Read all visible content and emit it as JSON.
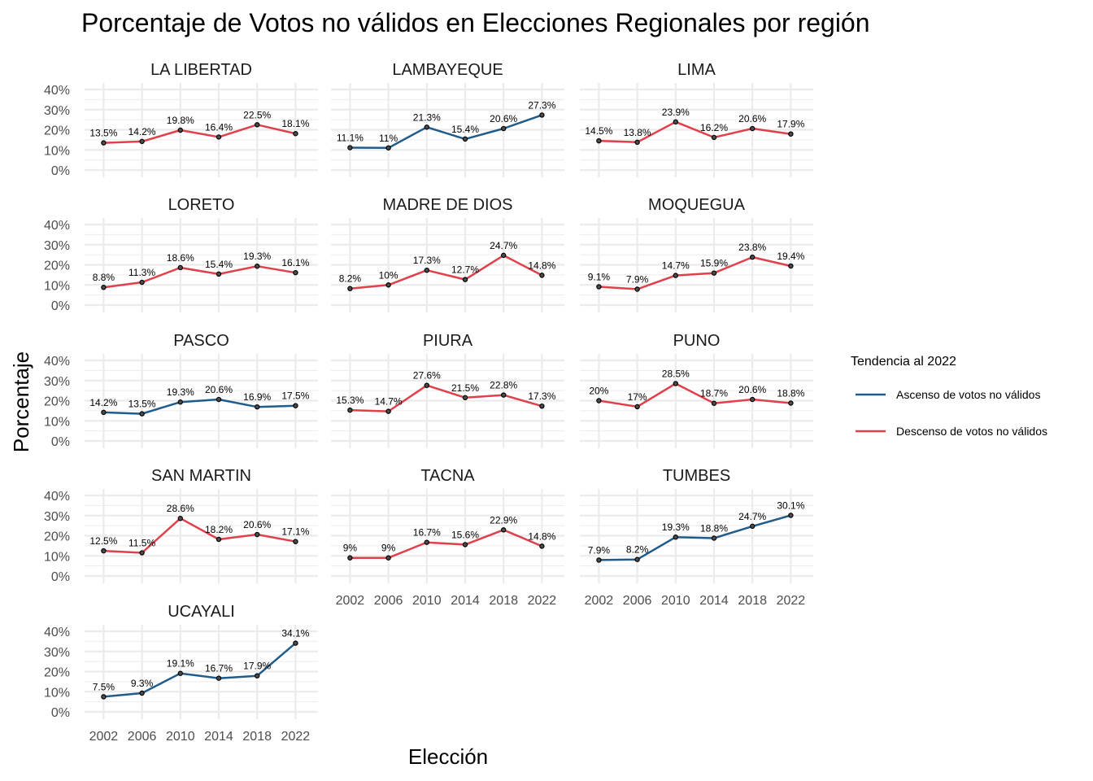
{
  "chart_data": {
    "type": "line",
    "title": "Porcentaje de Votos no válidos en Elecciones Regionales por región",
    "xlabel": "Elección",
    "ylabel": "Porcentaje",
    "x": [
      "2002",
      "2006",
      "2010",
      "2014",
      "2018",
      "2022"
    ],
    "ylim": [
      0,
      40
    ],
    "yticks": [
      "0%",
      "10%",
      "20%",
      "30%",
      "40%"
    ],
    "grid": true,
    "legend": {
      "title": "Tendencia al 2022",
      "position": "right",
      "entries": [
        {
          "key": "ascenso",
          "label": "Ascenso de votos no válidos",
          "color": "#1f5c8c"
        },
        {
          "key": "descenso",
          "label": "Descenso de votos no válidos",
          "color": "#e0404b"
        }
      ]
    },
    "panels": [
      {
        "region": "LA LIBERTAD",
        "trend": "descenso",
        "values": [
          13.5,
          14.2,
          19.8,
          16.4,
          22.5,
          18.1
        ],
        "labels": [
          "13.5%",
          "14.2%",
          "19.8%",
          "16.4%",
          "22.5%",
          "18.1%"
        ]
      },
      {
        "region": "LAMBAYEQUE",
        "trend": "ascenso",
        "values": [
          11.1,
          11,
          21.3,
          15.4,
          20.6,
          27.3
        ],
        "labels": [
          "11.1%",
          "11%",
          "21.3%",
          "15.4%",
          "20.6%",
          "27.3%"
        ]
      },
      {
        "region": "LIMA",
        "trend": "descenso",
        "values": [
          14.5,
          13.8,
          23.9,
          16.2,
          20.6,
          17.9
        ],
        "labels": [
          "14.5%",
          "13.8%",
          "23.9%",
          "16.2%",
          "20.6%",
          "17.9%"
        ]
      },
      {
        "region": "LORETO",
        "trend": "descenso",
        "values": [
          8.8,
          11.3,
          18.6,
          15.4,
          19.3,
          16.1
        ],
        "labels": [
          "8.8%",
          "11.3%",
          "18.6%",
          "15.4%",
          "19.3%",
          "16.1%"
        ]
      },
      {
        "region": "MADRE DE DIOS",
        "trend": "descenso",
        "values": [
          8.2,
          10,
          17.3,
          12.7,
          24.7,
          14.8
        ],
        "labels": [
          "8.2%",
          "10%",
          "17.3%",
          "12.7%",
          "24.7%",
          "14.8%"
        ]
      },
      {
        "region": "MOQUEGUA",
        "trend": "descenso",
        "values": [
          9.1,
          7.9,
          14.7,
          15.9,
          23.8,
          19.4
        ],
        "labels": [
          "9.1%",
          "7.9%",
          "14.7%",
          "15.9%",
          "23.8%",
          "19.4%"
        ]
      },
      {
        "region": "PASCO",
        "trend": "ascenso",
        "values": [
          14.2,
          13.5,
          19.3,
          20.6,
          16.9,
          17.5
        ],
        "labels": [
          "14.2%",
          "13.5%",
          "19.3%",
          "20.6%",
          "16.9%",
          "17.5%"
        ]
      },
      {
        "region": "PIURA",
        "trend": "descenso",
        "values": [
          15.3,
          14.7,
          27.6,
          21.5,
          22.8,
          17.3
        ],
        "labels": [
          "15.3%",
          "14.7%",
          "27.6%",
          "21.5%",
          "22.8%",
          "17.3%"
        ]
      },
      {
        "region": "PUNO",
        "trend": "descenso",
        "values": [
          20,
          17,
          28.5,
          18.7,
          20.6,
          18.8
        ],
        "labels": [
          "20%",
          "17%",
          "28.5%",
          "18.7%",
          "20.6%",
          "18.8%"
        ]
      },
      {
        "region": "SAN MARTIN",
        "trend": "descenso",
        "values": [
          12.5,
          11.5,
          28.6,
          18.2,
          20.6,
          17.1
        ],
        "labels": [
          "12.5%",
          "11.5%",
          "28.6%",
          "18.2%",
          "20.6%",
          "17.1%"
        ]
      },
      {
        "region": "TACNA",
        "trend": "descenso",
        "values": [
          9,
          9,
          16.7,
          15.6,
          22.9,
          14.8
        ],
        "labels": [
          "9%",
          "9%",
          "16.7%",
          "15.6%",
          "22.9%",
          "14.8%"
        ]
      },
      {
        "region": "TUMBES",
        "trend": "ascenso",
        "values": [
          7.9,
          8.2,
          19.3,
          18.8,
          24.7,
          30.1
        ],
        "labels": [
          "7.9%",
          "8.2%",
          "19.3%",
          "18.8%",
          "24.7%",
          "30.1%"
        ]
      },
      {
        "region": "UCAYALI",
        "trend": "ascenso",
        "values": [
          7.5,
          9.3,
          19.1,
          16.7,
          17.9,
          34.1
        ],
        "labels": [
          "7.5%",
          "9.3%",
          "19.1%",
          "16.7%",
          "17.9%",
          "34.1%"
        ]
      }
    ]
  }
}
